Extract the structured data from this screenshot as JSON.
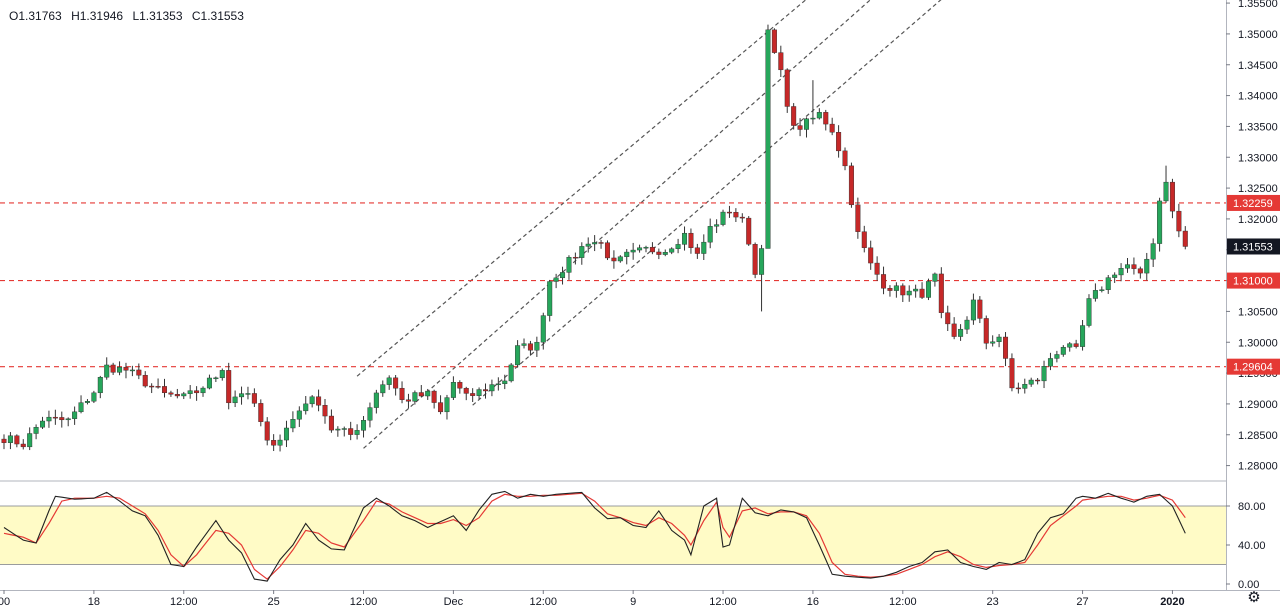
{
  "ohlc": {
    "open": "O1.31763",
    "high": "H1.31946",
    "low": "L1.31353",
    "close": "C1.31553"
  },
  "colors": {
    "up": "#26a65b",
    "down": "#c62828",
    "wick": "#333333",
    "level": "#e53935",
    "channel": "#555555",
    "stoch_k": "#222222",
    "stoch_d": "#e53935",
    "band_fill": "#fffbc6",
    "price_tag": "#131722"
  },
  "settings_icon": "gear-icon",
  "chart_data": [
    {
      "type": "candlestick",
      "ylim": [
        1.2775,
        1.3555
      ],
      "y_ticks": [
        {
          "v": 1.28,
          "label": "1.28000"
        },
        {
          "v": 1.285,
          "label": "1.28500"
        },
        {
          "v": 1.29,
          "label": "1.29000"
        },
        {
          "v": 1.295,
          "label": "1.29500"
        },
        {
          "v": 1.3,
          "label": "1.30000"
        },
        {
          "v": 1.305,
          "label": "1.30500"
        },
        {
          "v": 1.31,
          "label": "1.31000"
        },
        {
          "v": 1.315,
          "label": "1.31500"
        },
        {
          "v": 1.32,
          "label": "1.32000"
        },
        {
          "v": 1.325,
          "label": "1.32500"
        },
        {
          "v": 1.33,
          "label": "1.33000"
        },
        {
          "v": 1.335,
          "label": "1.33500"
        },
        {
          "v": 1.34,
          "label": "1.34000"
        },
        {
          "v": 1.345,
          "label": "1.34500"
        },
        {
          "v": 1.35,
          "label": "1.35000"
        },
        {
          "v": 1.355,
          "label": "1.35500"
        }
      ],
      "x_ticks": [
        {
          "i": 0,
          "label": "00"
        },
        {
          "i": 14,
          "label": "18"
        },
        {
          "i": 28,
          "label": "12:00"
        },
        {
          "i": 42,
          "label": "25"
        },
        {
          "i": 56,
          "label": "12:00"
        },
        {
          "i": 70,
          "label": "Dec"
        },
        {
          "i": 84,
          "label": "12:00"
        },
        {
          "i": 98,
          "label": "9"
        },
        {
          "i": 112,
          "label": "12:00"
        },
        {
          "i": 126,
          "label": "16"
        },
        {
          "i": 140,
          "label": "12:00"
        },
        {
          "i": 154,
          "label": "23"
        },
        {
          "i": 168,
          "label": "27"
        },
        {
          "i": 182,
          "label": "2020"
        }
      ],
      "levels": [
        {
          "price": 1.32259,
          "label": "1.32259"
        },
        {
          "price": 1.31,
          "label": "1.31000"
        },
        {
          "price": 1.29604,
          "label": "1.29604"
        }
      ],
      "last_price": {
        "price": 1.31553,
        "label": "1.31553"
      },
      "channel_lines": [
        {
          "from": [
            55,
            1.2945
          ],
          "to": [
            126,
            1.3565
          ]
        },
        {
          "from": [
            56,
            1.2828
          ],
          "to": [
            136,
            1.3565
          ]
        },
        {
          "from": [
            73,
            1.2898
          ],
          "to": [
            147,
            1.3565
          ]
        }
      ],
      "waypoints": [
        [
          0,
          1.2845
        ],
        [
          3,
          1.2835
        ],
        [
          6,
          1.2875
        ],
        [
          10,
          1.2873
        ],
        [
          12,
          1.2897
        ],
        [
          14,
          1.292
        ],
        [
          16,
          1.296
        ],
        [
          19,
          1.2955
        ],
        [
          22,
          1.2935
        ],
        [
          25,
          1.2915
        ],
        [
          28,
          1.291
        ],
        [
          30,
          1.292
        ],
        [
          33,
          1.2945
        ],
        [
          34,
          1.296
        ],
        [
          35,
          1.2905
        ],
        [
          37,
          1.292
        ],
        [
          39,
          1.29
        ],
        [
          41,
          1.2835
        ],
        [
          43,
          1.2845
        ],
        [
          45,
          1.2875
        ],
        [
          47,
          1.2905
        ],
        [
          49,
          1.2905
        ],
        [
          51,
          1.286
        ],
        [
          54,
          1.285
        ],
        [
          56,
          1.2875
        ],
        [
          58,
          1.292
        ],
        [
          60,
          1.2945
        ],
        [
          62,
          1.2905
        ],
        [
          64,
          1.2912
        ],
        [
          66,
          1.2915
        ],
        [
          68,
          1.2885
        ],
        [
          70,
          1.2935
        ],
        [
          72,
          1.291
        ],
        [
          75,
          1.2925
        ],
        [
          78,
          1.294
        ],
        [
          80,
          1.299
        ],
        [
          83,
          1.2995
        ],
        [
          84,
          1.305
        ],
        [
          85,
          1.31
        ],
        [
          88,
          1.313
        ],
        [
          91,
          1.3165
        ],
        [
          93,
          1.316
        ],
        [
          95,
          1.3125
        ],
        [
          97,
          1.314
        ],
        [
          100,
          1.315
        ],
        [
          103,
          1.315
        ],
        [
          106,
          1.3175
        ],
        [
          108,
          1.314
        ],
        [
          110,
          1.3185
        ],
        [
          113,
          1.3215
        ],
        [
          115,
          1.3195
        ],
        [
          116,
          1.3165
        ],
        [
          117,
          1.311
        ],
        [
          118,
          1.316
        ],
        [
          119,
          1.35
        ],
        [
          121,
          1.3435
        ],
        [
          123,
          1.3345
        ],
        [
          125,
          1.3355
        ],
        [
          127,
          1.337
        ],
        [
          129,
          1.3345
        ],
        [
          131,
          1.3285
        ],
        [
          133,
          1.3175
        ],
        [
          135,
          1.3125
        ],
        [
          137,
          1.3095
        ],
        [
          139,
          1.3085
        ],
        [
          141,
          1.308
        ],
        [
          143,
          1.308
        ],
        [
          145,
          1.3105
        ],
        [
          146,
          1.304
        ],
        [
          148,
          1.3005
        ],
        [
          150,
          1.304
        ],
        [
          151,
          1.3065
        ],
        [
          153,
          1.3
        ],
        [
          155,
          1.301
        ],
        [
          157,
          1.2925
        ],
        [
          159,
          1.293
        ],
        [
          161,
          1.294
        ],
        [
          163,
          1.2975
        ],
        [
          165,
          1.2995
        ],
        [
          167,
          1.2985
        ],
        [
          169,
          1.3065
        ],
        [
          171,
          1.309
        ],
        [
          173,
          1.3115
        ],
        [
          175,
          1.3125
        ],
        [
          177,
          1.3105
        ],
        [
          179,
          1.3165
        ],
        [
          180,
          1.323
        ],
        [
          181,
          1.3265
        ],
        [
          182,
          1.321
        ],
        [
          183,
          1.318
        ],
        [
          184,
          1.3155
        ]
      ],
      "spikes": [
        {
          "i": 119,
          "high": 1.3515,
          "low": 1.3155
        },
        {
          "i": 118,
          "low": 1.305
        },
        {
          "i": 181,
          "high": 1.32864
        },
        {
          "i": 126,
          "high": 1.3425
        }
      ]
    },
    {
      "type": "line",
      "indicator": "stochastic",
      "ylim": [
        0,
        100
      ],
      "y_ticks": [
        {
          "v": 80,
          "label": "80.00"
        },
        {
          "v": 40,
          "label": "40.00"
        },
        {
          "v": 0,
          "label": "0.00"
        }
      ],
      "band": [
        20,
        80
      ],
      "k_waypoints": [
        [
          0,
          58
        ],
        [
          3,
          45
        ],
        [
          5,
          42
        ],
        [
          7,
          75
        ],
        [
          8,
          90
        ],
        [
          11,
          87
        ],
        [
          14,
          88
        ],
        [
          16,
          94
        ],
        [
          18,
          85
        ],
        [
          20,
          75
        ],
        [
          22,
          70
        ],
        [
          24,
          50
        ],
        [
          26,
          20
        ],
        [
          28,
          18
        ],
        [
          30,
          38
        ],
        [
          33,
          65
        ],
        [
          35,
          45
        ],
        [
          37,
          32
        ],
        [
          39,
          5
        ],
        [
          41,
          3
        ],
        [
          43,
          25
        ],
        [
          45,
          40
        ],
        [
          47,
          62
        ],
        [
          49,
          45
        ],
        [
          51,
          36
        ],
        [
          53,
          35
        ],
        [
          56,
          78
        ],
        [
          58,
          88
        ],
        [
          60,
          80
        ],
        [
          62,
          70
        ],
        [
          64,
          65
        ],
        [
          66,
          58
        ],
        [
          68,
          64
        ],
        [
          70,
          70
        ],
        [
          72,
          55
        ],
        [
          74,
          76
        ],
        [
          76,
          92
        ],
        [
          78,
          95
        ],
        [
          80,
          88
        ],
        [
          82,
          92
        ],
        [
          84,
          90
        ],
        [
          86,
          92
        ],
        [
          88,
          93
        ],
        [
          90,
          94
        ],
        [
          92,
          78
        ],
        [
          94,
          67
        ],
        [
          96,
          68
        ],
        [
          98,
          60
        ],
        [
          100,
          58
        ],
        [
          102,
          75
        ],
        [
          104,
          55
        ],
        [
          106,
          45
        ],
        [
          107,
          30
        ],
        [
          109,
          80
        ],
        [
          111,
          88
        ],
        [
          112,
          38
        ],
        [
          113,
          40
        ],
        [
          115,
          88
        ],
        [
          117,
          73
        ],
        [
          119,
          70
        ],
        [
          121,
          76
        ],
        [
          123,
          74
        ],
        [
          125,
          68
        ],
        [
          127,
          40
        ],
        [
          129,
          10
        ],
        [
          131,
          8
        ],
        [
          133,
          7
        ],
        [
          135,
          6
        ],
        [
          137,
          8
        ],
        [
          139,
          12
        ],
        [
          141,
          18
        ],
        [
          143,
          22
        ],
        [
          145,
          33
        ],
        [
          147,
          35
        ],
        [
          149,
          22
        ],
        [
          151,
          18
        ],
        [
          153,
          15
        ],
        [
          155,
          22
        ],
        [
          157,
          20
        ],
        [
          159,
          25
        ],
        [
          161,
          52
        ],
        [
          163,
          68
        ],
        [
          165,
          72
        ],
        [
          167,
          88
        ],
        [
          168,
          90
        ],
        [
          170,
          88
        ],
        [
          172,
          93
        ],
        [
          174,
          88
        ],
        [
          176,
          84
        ],
        [
          178,
          90
        ],
        [
          180,
          92
        ],
        [
          182,
          80
        ],
        [
          184,
          52
        ]
      ],
      "d_waypoints": [
        [
          0,
          52
        ],
        [
          3,
          48
        ],
        [
          5,
          42
        ],
        [
          7,
          62
        ],
        [
          9,
          85
        ],
        [
          11,
          88
        ],
        [
          14,
          88
        ],
        [
          16,
          90
        ],
        [
          18,
          88
        ],
        [
          20,
          80
        ],
        [
          22,
          72
        ],
        [
          24,
          55
        ],
        [
          26,
          30
        ],
        [
          28,
          18
        ],
        [
          30,
          30
        ],
        [
          33,
          55
        ],
        [
          35,
          52
        ],
        [
          37,
          40
        ],
        [
          39,
          15
        ],
        [
          41,
          5
        ],
        [
          43,
          18
        ],
        [
          45,
          35
        ],
        [
          47,
          55
        ],
        [
          49,
          52
        ],
        [
          51,
          42
        ],
        [
          53,
          38
        ],
        [
          56,
          65
        ],
        [
          58,
          85
        ],
        [
          60,
          82
        ],
        [
          62,
          74
        ],
        [
          64,
          68
        ],
        [
          66,
          62
        ],
        [
          68,
          62
        ],
        [
          70,
          66
        ],
        [
          72,
          60
        ],
        [
          74,
          68
        ],
        [
          76,
          85
        ],
        [
          78,
          92
        ],
        [
          80,
          90
        ],
        [
          82,
          90
        ],
        [
          84,
          91
        ],
        [
          86,
          91
        ],
        [
          88,
          92
        ],
        [
          90,
          93
        ],
        [
          92,
          85
        ],
        [
          94,
          72
        ],
        [
          96,
          68
        ],
        [
          98,
          63
        ],
        [
          100,
          60
        ],
        [
          102,
          68
        ],
        [
          104,
          62
        ],
        [
          106,
          50
        ],
        [
          107,
          40
        ],
        [
          109,
          65
        ],
        [
          111,
          84
        ],
        [
          112,
          58
        ],
        [
          113,
          48
        ],
        [
          115,
          75
        ],
        [
          117,
          78
        ],
        [
          119,
          72
        ],
        [
          121,
          74
        ],
        [
          123,
          74
        ],
        [
          125,
          70
        ],
        [
          127,
          52
        ],
        [
          129,
          22
        ],
        [
          131,
          10
        ],
        [
          133,
          8
        ],
        [
          135,
          7
        ],
        [
          137,
          8
        ],
        [
          139,
          10
        ],
        [
          141,
          15
        ],
        [
          143,
          20
        ],
        [
          145,
          28
        ],
        [
          147,
          33
        ],
        [
          149,
          28
        ],
        [
          151,
          20
        ],
        [
          153,
          17
        ],
        [
          155,
          19
        ],
        [
          157,
          20
        ],
        [
          159,
          22
        ],
        [
          161,
          40
        ],
        [
          163,
          60
        ],
        [
          165,
          70
        ],
        [
          167,
          80
        ],
        [
          168,
          86
        ],
        [
          170,
          88
        ],
        [
          172,
          90
        ],
        [
          174,
          90
        ],
        [
          176,
          86
        ],
        [
          178,
          88
        ],
        [
          180,
          91
        ],
        [
          182,
          86
        ],
        [
          184,
          68
        ]
      ]
    }
  ]
}
